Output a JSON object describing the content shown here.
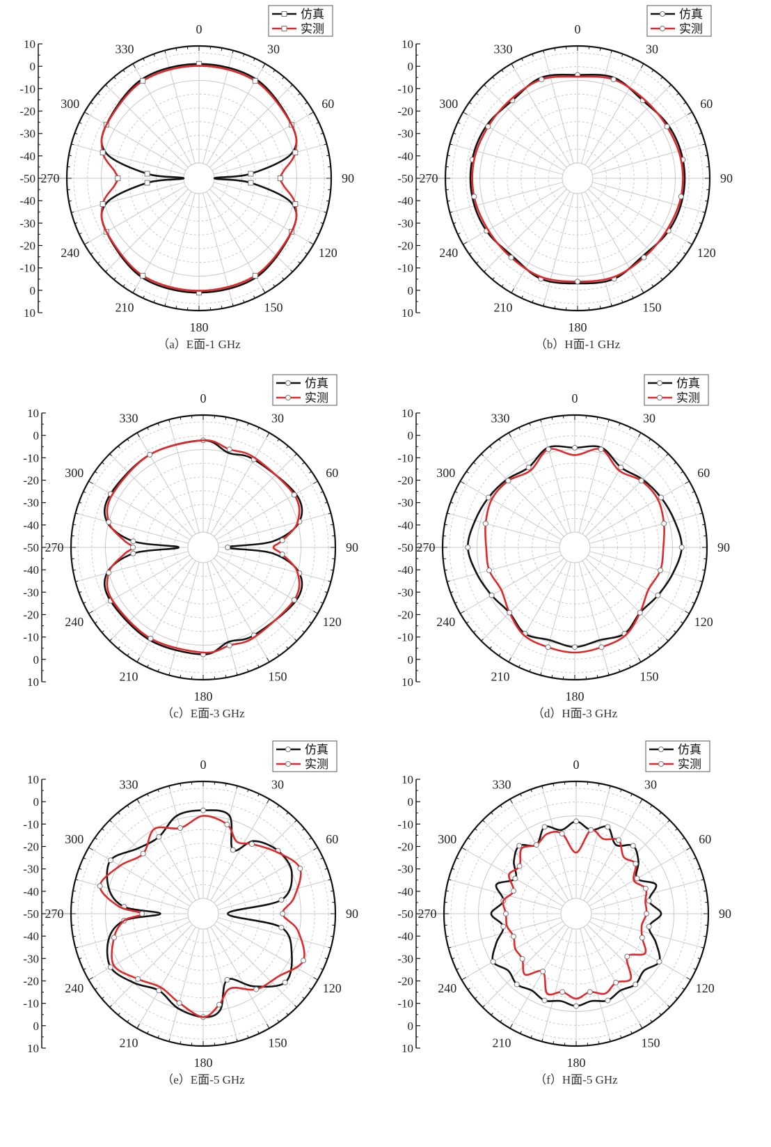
{
  "legend": {
    "sim_label": "仿真",
    "meas_label": "实测"
  },
  "colors": {
    "simulated": "#111111",
    "measured": "#e0282a",
    "grid": "#c8c8c8",
    "axis": "#111111"
  },
  "chart_data": [
    {
      "type": "polar-line",
      "caption": "（a）E面-1 GHz",
      "angle_ticks": [
        "0",
        "30",
        "60",
        "90",
        "120",
        "150",
        "180",
        "210",
        "240",
        "270",
        "300",
        "330"
      ],
      "radial_ticks": [
        "10",
        "0",
        "-10",
        "-20",
        "-30",
        "-40",
        "-50",
        "-40",
        "-30",
        "-20",
        "-10",
        "0",
        "10"
      ],
      "rlim": [
        -50,
        10
      ],
      "grid": true,
      "legend": "top-right",
      "markers": "square",
      "series": [
        {
          "name": "仿真",
          "theta": [
            0,
            30,
            60,
            75,
            85,
            90,
            95,
            105,
            120,
            150,
            180,
            210,
            240,
            255,
            265,
            270,
            275,
            285,
            300,
            330
          ],
          "r": [
            4,
            4,
            0,
            -6,
            -30,
            -50,
            -30,
            -6,
            0,
            4,
            4,
            4,
            0,
            -6,
            -30,
            -50,
            -30,
            -6,
            0,
            4
          ]
        },
        {
          "name": "实测",
          "theta": [
            0,
            30,
            60,
            75,
            85,
            90,
            95,
            105,
            120,
            150,
            180,
            210,
            240,
            255,
            265,
            270,
            275,
            285,
            300,
            330
          ],
          "r": [
            3,
            3,
            0,
            -4,
            -12,
            -14,
            -12,
            -4,
            0,
            3,
            3,
            3,
            0,
            -4,
            -12,
            -14,
            -12,
            -4,
            0,
            3
          ]
        }
      ]
    },
    {
      "type": "polar-line",
      "caption": "（b）H面-1 GHz",
      "angle_ticks": [
        "0",
        "30",
        "60",
        "90",
        "120",
        "150",
        "180",
        "210",
        "240",
        "270",
        "300",
        "330"
      ],
      "radial_ticks": [
        "10",
        "0",
        "-10",
        "-20",
        "-30",
        "-40",
        "-50",
        "-40",
        "-30",
        "-20",
        "-10",
        "0",
        "10"
      ],
      "rlim": [
        -50,
        10
      ],
      "grid": true,
      "legend": "top-right",
      "markers": "circle",
      "series": [
        {
          "name": "仿真",
          "theta": [
            0,
            20,
            40,
            60,
            80,
            100,
            120,
            140,
            160,
            180,
            200,
            220,
            240,
            260,
            280,
            300,
            320,
            340
          ],
          "r": [
            -2,
            0,
            -3,
            -1,
            0,
            0,
            -1,
            -3,
            0,
            -1,
            0,
            -3,
            -1,
            0,
            0,
            -1,
            -3,
            0
          ]
        },
        {
          "name": "实测",
          "theta": [
            0,
            20,
            40,
            60,
            80,
            100,
            120,
            140,
            160,
            180,
            200,
            220,
            240,
            260,
            280,
            300,
            320,
            340
          ],
          "r": [
            -3,
            -1,
            -2,
            -2,
            -1,
            -1,
            -2,
            -2,
            -1,
            -2,
            -1,
            -2,
            -2,
            -1,
            -1,
            -2,
            -2,
            -1
          ]
        }
      ]
    },
    {
      "type": "polar-line",
      "caption": "（c）E面-3 GHz",
      "angle_ticks": [
        "0",
        "30",
        "60",
        "90",
        "120",
        "150",
        "180",
        "210",
        "240",
        "270",
        "300",
        "330"
      ],
      "radial_ticks": [
        "10",
        "0",
        "-10",
        "-20",
        "-30",
        "-40",
        "-50",
        "-40",
        "-30",
        "-20",
        "-10",
        "0",
        "10"
      ],
      "rlim": [
        -50,
        10
      ],
      "grid": true,
      "legend": "top-right",
      "markers": "circle",
      "series": [
        {
          "name": "仿真",
          "theta": [
            0,
            15,
            30,
            60,
            75,
            85,
            90,
            95,
            105,
            120,
            150,
            165,
            180,
            210,
            240,
            255,
            265,
            270,
            275,
            285,
            300,
            330
          ],
          "r": [
            0,
            -5,
            -3,
            0,
            -4,
            -20,
            -45,
            -20,
            -4,
            0,
            -3,
            -5,
            0,
            0,
            0,
            -4,
            -20,
            -45,
            -20,
            -4,
            0,
            0
          ]
        },
        {
          "name": "实测",
          "theta": [
            0,
            15,
            30,
            60,
            75,
            85,
            90,
            95,
            105,
            120,
            150,
            165,
            180,
            210,
            240,
            255,
            265,
            270,
            275,
            285,
            300,
            330
          ],
          "r": [
            0,
            -3,
            -2,
            -1,
            -5,
            -15,
            -20,
            -15,
            -5,
            -1,
            -2,
            -3,
            -1,
            -1,
            -1,
            -5,
            -15,
            -20,
            -15,
            -5,
            -1,
            0
          ]
        }
      ]
    },
    {
      "type": "polar-line",
      "caption": "（d）H面-3 GHz",
      "angle_ticks": [
        "0",
        "30",
        "60",
        "90",
        "120",
        "150",
        "180",
        "210",
        "240",
        "270",
        "300",
        "330"
      ],
      "radial_ticks": [
        "10",
        "0",
        "-10",
        "-20",
        "-30",
        "-40",
        "-50",
        "-40",
        "-30",
        "-20",
        "-10",
        "0",
        "10"
      ],
      "rlim": [
        -50,
        10
      ],
      "grid": true,
      "legend": "top-right",
      "markers": "circle",
      "series": [
        {
          "name": "仿真",
          "theta": [
            0,
            15,
            30,
            45,
            60,
            75,
            90,
            105,
            120,
            135,
            150,
            165,
            180,
            195,
            210,
            225,
            240,
            255,
            270,
            285,
            300,
            315,
            330,
            345
          ],
          "r": [
            -4,
            -2,
            -8,
            -6,
            -4,
            -2,
            0,
            -3,
            -6,
            -8,
            -4,
            -6,
            -4,
            -6,
            -4,
            -8,
            -6,
            -3,
            0,
            -2,
            -4,
            -6,
            -8,
            -2
          ]
        },
        {
          "name": "实测",
          "theta": [
            0,
            15,
            30,
            45,
            60,
            75,
            90,
            105,
            120,
            135,
            150,
            165,
            180,
            195,
            210,
            225,
            240,
            255,
            270,
            285,
            300,
            315,
            330,
            345
          ],
          "r": [
            -8,
            -3,
            -10,
            -7,
            -6,
            -8,
            -10,
            -10,
            -12,
            -8,
            -3,
            -2,
            -1,
            -2,
            -3,
            -8,
            -12,
            -10,
            -10,
            -8,
            -6,
            -7,
            -10,
            -3
          ]
        }
      ]
    },
    {
      "type": "polar-line",
      "caption": "（e）E面-5 GHz",
      "angle_ticks": [
        "0",
        "30",
        "60",
        "90",
        "120",
        "150",
        "180",
        "210",
        "240",
        "270",
        "300",
        "330"
      ],
      "radial_ticks": [
        "10",
        "0",
        "-10",
        "-20",
        "-30",
        "-40",
        "-50",
        "-40",
        "-30",
        "-20",
        "-10",
        "0",
        "10"
      ],
      "rlim": [
        -50,
        10
      ],
      "grid": true,
      "legend": "top-right",
      "markers": "circle",
      "series": [
        {
          "name": "仿真",
          "theta": [
            0,
            15,
            25,
            35,
            50,
            65,
            80,
            90,
            100,
            115,
            130,
            145,
            160,
            170,
            180,
            195,
            210,
            225,
            240,
            255,
            265,
            270,
            275,
            285,
            300,
            315,
            330,
            345
          ],
          "r": [
            -2,
            -3,
            -20,
            -10,
            -5,
            -5,
            -15,
            -45,
            -15,
            -5,
            0,
            -10,
            -20,
            -5,
            -2,
            -5,
            -10,
            -5,
            0,
            -5,
            -15,
            -35,
            -15,
            -5,
            0,
            -8,
            -10,
            -3
          ]
        },
        {
          "name": "实测",
          "theta": [
            0,
            15,
            25,
            35,
            50,
            65,
            80,
            90,
            100,
            115,
            130,
            145,
            160,
            170,
            180,
            195,
            210,
            225,
            240,
            255,
            265,
            270,
            275,
            285,
            300,
            315,
            330,
            345
          ],
          "r": [
            -5,
            -8,
            -15,
            -12,
            -6,
            0,
            -8,
            -15,
            -6,
            2,
            -5,
            -8,
            -15,
            -8,
            -2,
            -8,
            -12,
            -8,
            -2,
            -8,
            -15,
            -25,
            -12,
            0,
            -6,
            -12,
            -5,
            -10
          ]
        }
      ]
    },
    {
      "type": "polar-line",
      "caption": "（f）H面-5 GHz",
      "angle_ticks": [
        "0",
        "30",
        "60",
        "90",
        "120",
        "150",
        "180",
        "210",
        "240",
        "270",
        "300",
        "330"
      ],
      "radial_ticks": [
        "10",
        "0",
        "-10",
        "-20",
        "-30",
        "-40",
        "-50",
        "-40",
        "-30",
        "-20",
        "-10",
        "0",
        "10"
      ],
      "rlim": [
        -50,
        10
      ],
      "grid": true,
      "legend": "top-right",
      "markers": "circle",
      "series": [
        {
          "name": "仿真",
          "theta": [
            0,
            10,
            20,
            30,
            40,
            50,
            60,
            70,
            80,
            90,
            100,
            110,
            120,
            130,
            140,
            150,
            160,
            170,
            180,
            190,
            200,
            210,
            220,
            230,
            240,
            250,
            260,
            270,
            280,
            290,
            300,
            310,
            320,
            330,
            340,
            350
          ],
          "r": [
            -8,
            -12,
            -8,
            -15,
            -10,
            -14,
            -20,
            -12,
            -18,
            -12,
            -18,
            -12,
            -6,
            -10,
            -8,
            -10,
            -8,
            -10,
            -8,
            -10,
            -8,
            -10,
            -8,
            -10,
            -6,
            -12,
            -18,
            -12,
            -18,
            -12,
            -20,
            -14,
            -10,
            -15,
            -8,
            -12
          ]
        },
        {
          "name": "实测",
          "theta": [
            0,
            10,
            20,
            30,
            40,
            50,
            60,
            70,
            80,
            90,
            100,
            110,
            120,
            130,
            140,
            150,
            160,
            170,
            180,
            190,
            200,
            210,
            220,
            230,
            240,
            250,
            260,
            270,
            280,
            290,
            300,
            310,
            320,
            330,
            340,
            350
          ],
          "r": [
            -25,
            -12,
            -15,
            -12,
            -18,
            -16,
            -22,
            -18,
            -20,
            -20,
            -22,
            -20,
            -15,
            -22,
            -12,
            -15,
            -12,
            -15,
            -12,
            -15,
            -12,
            -22,
            -15,
            -20,
            -20,
            -22,
            -20,
            -20,
            -18,
            -22,
            -16,
            -18,
            -12,
            -15,
            -12,
            -14
          ]
        }
      ]
    }
  ]
}
